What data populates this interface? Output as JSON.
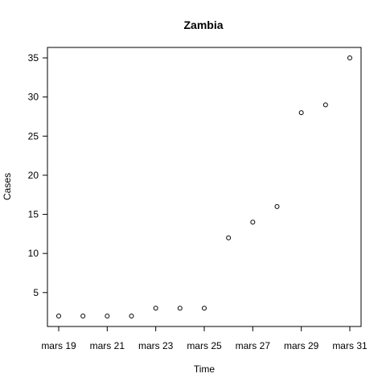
{
  "chart_data": {
    "type": "scatter",
    "title": "Zambia",
    "xlabel": "Time",
    "ylabel": "Cases",
    "x_dates": [
      "2020-03-19",
      "2020-03-20",
      "2020-03-21",
      "2020-03-22",
      "2020-03-23",
      "2020-03-24",
      "2020-03-25",
      "2020-03-26",
      "2020-03-27",
      "2020-03-28",
      "2020-03-29",
      "2020-03-30",
      "2020-03-31"
    ],
    "y": [
      2,
      2,
      2,
      2,
      3,
      3,
      3,
      12,
      14,
      16,
      28,
      29,
      35
    ],
    "x_ticks": [
      "2020-03-19",
      "2020-03-21",
      "2020-03-23",
      "2020-03-25",
      "2020-03-27",
      "2020-03-29",
      "2020-03-31"
    ],
    "x_tick_labels": [
      "mars 19",
      "mars 21",
      "mars 23",
      "mars 25",
      "mars 27",
      "mars 29",
      "mars 31"
    ],
    "y_ticks": [
      5,
      10,
      15,
      20,
      25,
      30,
      35
    ],
    "xlim": [
      "2020-03-19",
      "2020-03-31"
    ],
    "ylim": [
      2,
      35
    ],
    "grid": false,
    "marker": "open-circle"
  }
}
